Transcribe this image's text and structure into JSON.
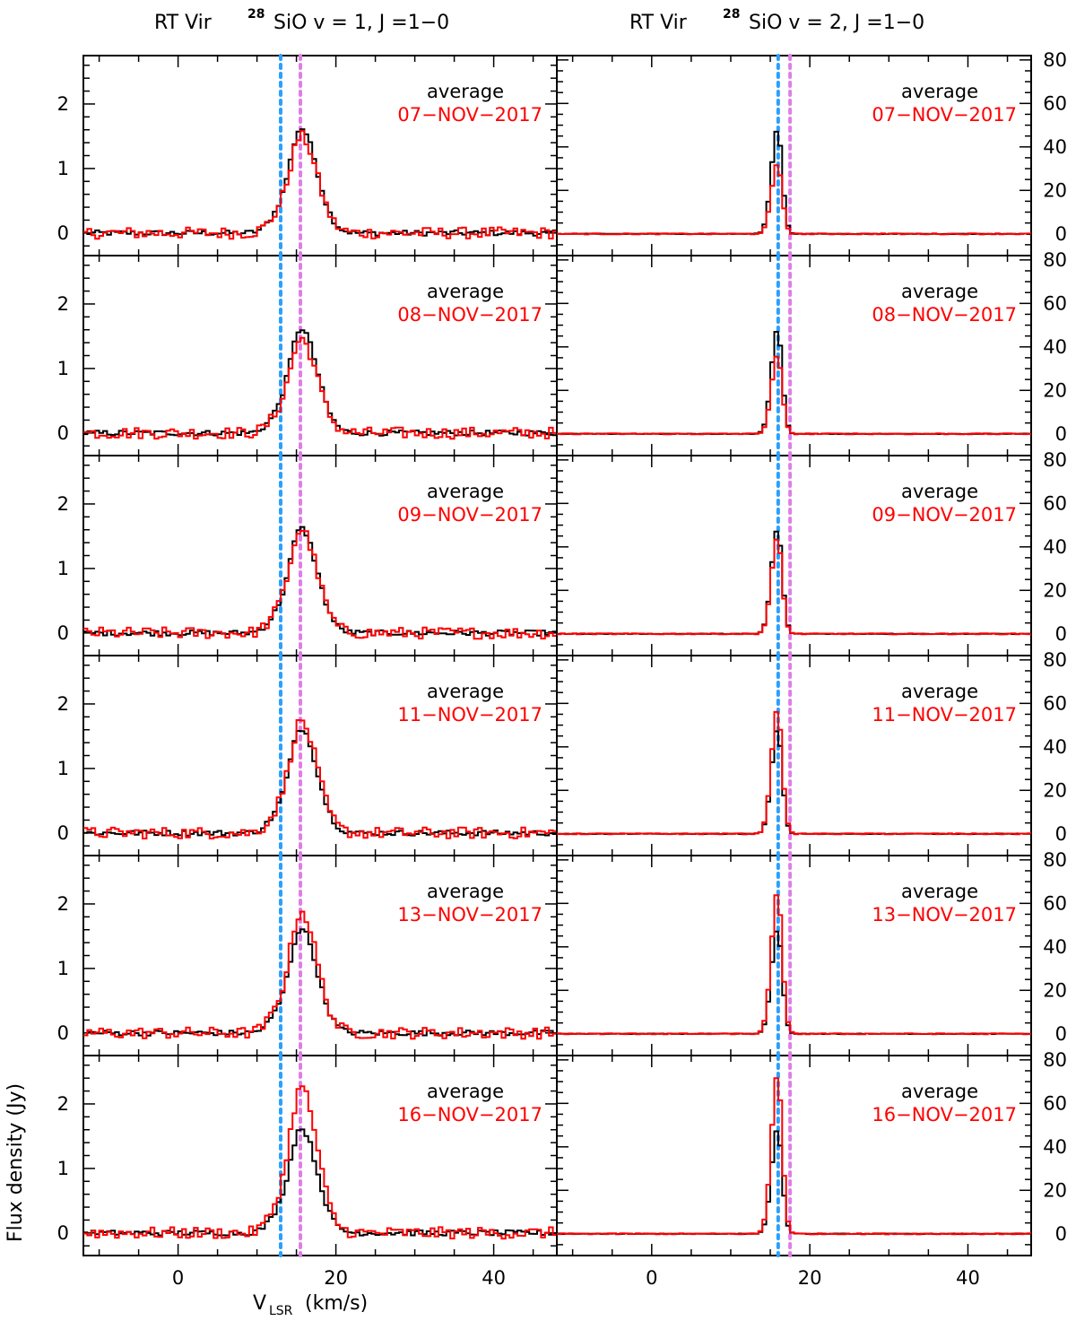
{
  "chart_data": {
    "type": "line",
    "columns": [
      {
        "title_prefix": "RT Vir",
        "isotope": "28",
        "title_molecule": "SiO v = 1, J =1−0",
        "yticks": [
          0,
          1,
          2
        ],
        "ylim": [
          -0.35,
          2.75
        ],
        "yaxis_side": "left",
        "panels": [
          {
            "label": "average",
            "date": "07−NOV−2017",
            "avg_peak": 1.62,
            "date_peak": 1.5
          },
          {
            "label": "average",
            "date": "08−NOV−2017",
            "avg_peak": 1.62,
            "date_peak": 1.45
          },
          {
            "label": "average",
            "date": "09−NOV−2017",
            "avg_peak": 1.62,
            "date_peak": 1.6
          },
          {
            "label": "average",
            "date": "11−NOV−2017",
            "avg_peak": 1.62,
            "date_peak": 1.72
          },
          {
            "label": "average",
            "date": "13−NOV−2017",
            "avg_peak": 1.62,
            "date_peak": 1.88
          },
          {
            "label": "average",
            "date": "16−NOV−2017",
            "avg_peak": 1.62,
            "date_peak": 2.25
          }
        ]
      },
      {
        "title_prefix": "RT Vir",
        "isotope": "28",
        "title_molecule": "SiO v = 2, J =1−0",
        "yticks": [
          0,
          20,
          40,
          60,
          80
        ],
        "ylim": [
          -10,
          82
        ],
        "yaxis_side": "right",
        "panels": [
          {
            "label": "average",
            "date": "07−NOV−2017",
            "avg_peak": 48,
            "date_peak": 32
          },
          {
            "label": "average",
            "date": "08−NOV−2017",
            "avg_peak": 48,
            "date_peak": 36
          },
          {
            "label": "average",
            "date": "09−NOV−2017",
            "avg_peak": 48,
            "date_peak": 44
          },
          {
            "label": "average",
            "date": "11−NOV−2017",
            "avg_peak": 48,
            "date_peak": 57
          },
          {
            "label": "average",
            "date": "13−NOV−2017",
            "avg_peak": 48,
            "date_peak": 65
          },
          {
            "label": "average",
            "date": "16−NOV−2017",
            "avg_peak": 48,
            "date_peak": 73
          }
        ]
      }
    ],
    "xlim": [
      -12,
      48
    ],
    "xticks": [
      0,
      20,
      40
    ],
    "xlabel": "V",
    "xlabel_sub": "LSR",
    "xlabel_unit": "(km/s)",
    "ylabel": "Flux density (Jy)",
    "reference_lines": [
      {
        "name": "blue",
        "color": "#2aa0ff",
        "x_left": 13.0,
        "x_right": 16.0
      },
      {
        "name": "violet",
        "color": "#e07ee8",
        "x_left": 15.5,
        "x_right": 17.5
      }
    ],
    "series": [
      {
        "name": "average",
        "color": "#000000"
      },
      {
        "name": "date",
        "color": "#ff0000"
      }
    ]
  }
}
